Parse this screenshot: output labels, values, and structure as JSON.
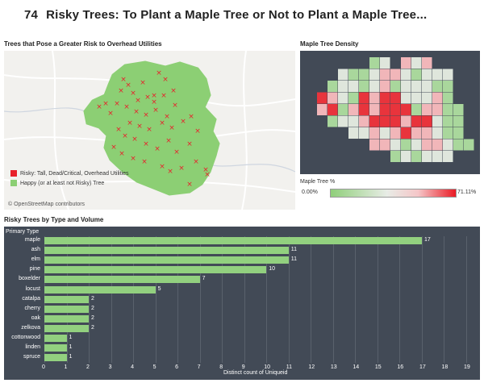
{
  "header": {
    "number": "74",
    "title": "Risky Trees: To Plant a Maple Tree or Not to Plant a Maple Tree..."
  },
  "map": {
    "title": "Trees that Pose a Greater Risk to Overhead Utilities",
    "legend": [
      {
        "label": "Risky: Tall, Dead/Critical, Overhead Utilities",
        "color": "#e8212b"
      },
      {
        "label": "Happy (or at least not Risky) Tree",
        "color": "#8ccf74"
      }
    ],
    "attribution": "© OpenStreetMap contributors"
  },
  "density": {
    "title": "Maple Tree Density",
    "legend_title": "Maple Tree %",
    "min_label": "0.00%",
    "max_label": "71.11%"
  },
  "bars": {
    "title": "Risky Trees by Type and Volume",
    "column_header": "Primary Type",
    "xlabel": "Distinct count of Uniqueid",
    "accent": "#92d07f"
  },
  "chart_data": {
    "type": "bar",
    "orientation": "horizontal",
    "title": "Risky Trees by Type and Volume",
    "xlabel": "Distinct count of Uniqueid",
    "ylabel": "Primary Type",
    "categories": [
      "maple",
      "ash",
      "elm",
      "pine",
      "boxelder",
      "locust",
      "catalpa",
      "cherry",
      "oak",
      "zelkova",
      "cottonwood",
      "linden",
      "spruce"
    ],
    "values": [
      17,
      11,
      11,
      10,
      7,
      5,
      2,
      2,
      2,
      2,
      1,
      1,
      1
    ],
    "xlim": [
      0,
      19
    ],
    "xticks": [
      0,
      1,
      2,
      3,
      4,
      5,
      6,
      7,
      8,
      9,
      10,
      11,
      12,
      13,
      14,
      15,
      16,
      17,
      18,
      19
    ]
  }
}
